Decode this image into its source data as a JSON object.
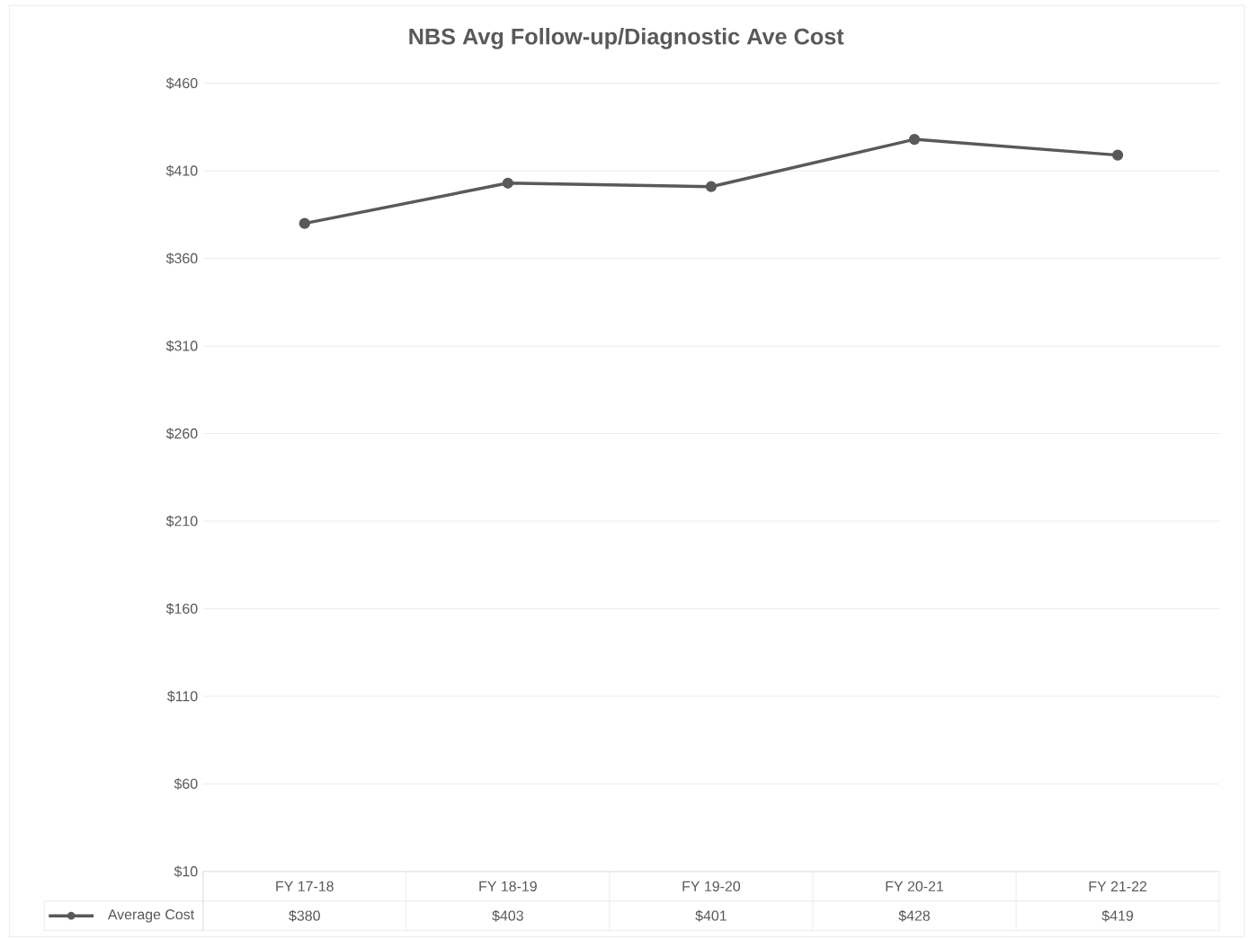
{
  "chart_data": {
    "type": "line",
    "title": "NBS Avg Follow-up/Diagnostic Ave Cost",
    "categories": [
      "FY 17-18",
      "FY 18-19",
      "FY 19-20",
      "FY 20-21",
      "FY 21-22"
    ],
    "series": [
      {
        "name": "Average Cost",
        "color": "#595959",
        "values": [
          380,
          403,
          401,
          428,
          419
        ],
        "value_labels": [
          "$380",
          "$403",
          "$401",
          "$428",
          "$419"
        ]
      }
    ],
    "ylim": [
      10,
      460
    ],
    "yticks": [
      {
        "value": 10,
        "label": "$10"
      },
      {
        "value": 60,
        "label": "$60"
      },
      {
        "value": 110,
        "label": "$110"
      },
      {
        "value": 160,
        "label": "$160"
      },
      {
        "value": 210,
        "label": "$210"
      },
      {
        "value": 260,
        "label": "$260"
      },
      {
        "value": 310,
        "label": "$310"
      },
      {
        "value": 360,
        "label": "$360"
      },
      {
        "value": 410,
        "label": "$410"
      },
      {
        "value": 460,
        "label": "$460"
      }
    ],
    "grid": "y",
    "legend": "bottom",
    "marker": "circle",
    "line_style": "solid"
  }
}
